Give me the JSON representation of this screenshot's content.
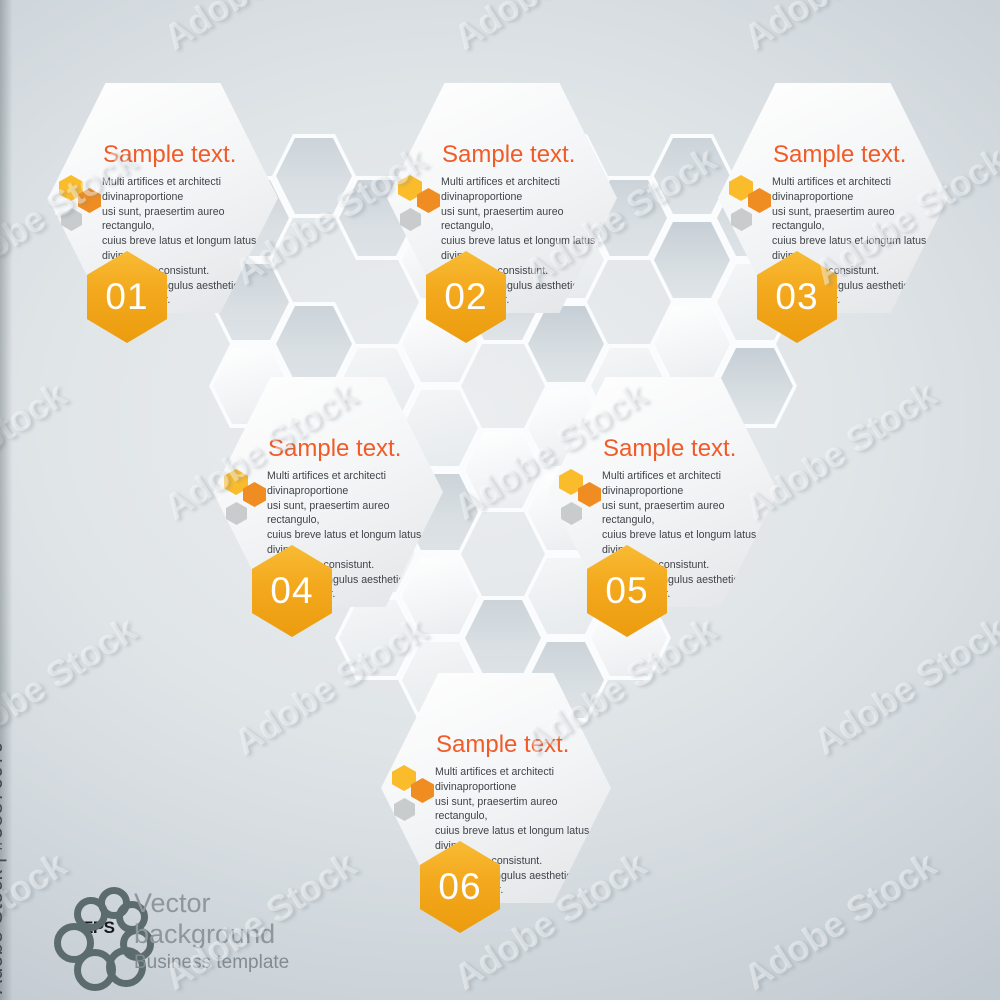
{
  "watermark": {
    "tile_text": "Adobe Stock",
    "credit_text": "Adobe Stock | #58876070"
  },
  "panels": [
    {
      "number": "01",
      "title": "Sample text.",
      "body": "Multi artifices et architecti divinaproportione\nusi sunt, praesertim aureo rectangulo,\ncuius breve latus et longum latus in divina\nproportione consistunt.\nAureus rectangulus aesthetice\nplacere dicitur."
    },
    {
      "number": "02",
      "title": "Sample text.",
      "body": "Multi artifices et architecti divinaproportione\nusi sunt, praesertim aureo rectangulo,\ncuius breve latus et longum latus in divina\nproportione consistunt.\nAureus rectangulus aesthetice\nplacere dicitur."
    },
    {
      "number": "03",
      "title": "Sample text.",
      "body": "Multi artifices et architecti divinaproportione\nusi sunt, praesertim aureo rectangulo,\ncuius breve latus et longum latus in divina\nproportione consistunt.\nAureus rectangulus aesthetice\nplacere dicitur."
    },
    {
      "number": "04",
      "title": "Sample text.",
      "body": "Multi artifices et architecti divinaproportione\nusi sunt, praesertim aureo rectangulo,\ncuius breve latus et longum latus in divina\nproportione consistunt.\nAureus rectangulus aesthetice\nplacere dicitur."
    },
    {
      "number": "05",
      "title": "Sample text.",
      "body": "Multi artifices et architecti divinaproportione\nusi sunt, praesertim aureo rectangulo,\ncuius breve latus et longum latus in divina\nproportione consistunt.\nAureus rectangulus aesthetice\nplacere dicitur."
    },
    {
      "number": "06",
      "title": "Sample text.",
      "body": "Multi artifices et architecti divinaproportione\nusi sunt, praesertim aureo rectangulo,\ncuius breve latus et longum latus in divina\nproportione consistunt.\nAureus rectangulus aesthetice\nplacere dicitur."
    }
  ],
  "footer": {
    "logo_badge": "EPS",
    "title": "Vector\nbackground",
    "subtitle": "Business template"
  },
  "colors": {
    "title_orange": "#f15b27",
    "badge_orange": "#f3a81d",
    "icon_yellow": "#fbbc2c",
    "icon_orange": "#ef8d22",
    "icon_gray": "#c9cccd",
    "background_tint": "#d6dde2"
  }
}
